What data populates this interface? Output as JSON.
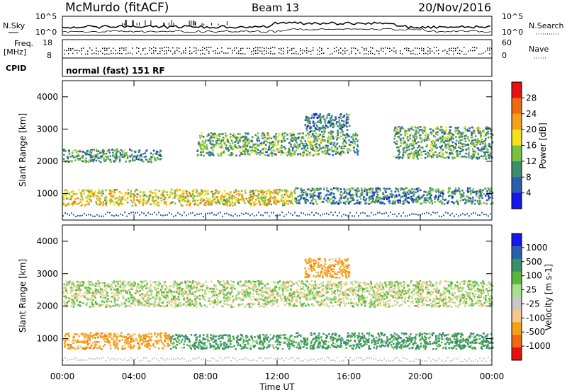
{
  "header": {
    "station": "McMurdo (fitACF)",
    "beam": "Beam 13",
    "date": "20/Nov/2016"
  },
  "noise_panel": {
    "left_label": "N.Sky",
    "right_label": "N.Search",
    "left_ticks": [
      "10^5",
      "10^0"
    ],
    "right_ticks": [
      "10^5",
      "10^0"
    ]
  },
  "freq_panel": {
    "left_label_1": "Freq.",
    "left_label_2": "[MHz]",
    "left_ticks": [
      "18",
      "8"
    ],
    "right_label": "Nave",
    "right_ticks": [
      "60",
      "0"
    ]
  },
  "cpid_panel": {
    "label": "CPID",
    "text": "normal (fast) 151 RF"
  },
  "x_axis": {
    "label": "Time UT",
    "ticks": [
      "00:00",
      "04:00",
      "08:00",
      "12:00",
      "16:00",
      "20:00",
      "00:00"
    ]
  },
  "colors": {
    "power": [
      "#1418e8",
      "#2a5fb0",
      "#3a8e6a",
      "#7ac23e",
      "#f2e21a",
      "#f5a019",
      "#f26a10",
      "#e81010"
    ],
    "velocity": [
      "#e81010",
      "#f26a10",
      "#f5a019",
      "#f5c88a",
      "#c8c8c8",
      "#a6e08a",
      "#59b83c",
      "#3a8e6a",
      "#2a5fb0",
      "#1418e8"
    ]
  },
  "chart_data": [
    {
      "type": "heatmap",
      "ylabel": "Slant Range [km]",
      "xlabel": "",
      "ylim": [
        180,
        4500
      ],
      "y_ticks": [
        "4000",
        "3000",
        "2000",
        "1000"
      ],
      "colorbar": {
        "label": "Power [dB]",
        "ticks": [
          "28",
          "24",
          "20",
          "16",
          "12",
          "8",
          "4"
        ],
        "range": [
          0,
          32
        ]
      },
      "bands": [
        {
          "from_h": 0.0,
          "to_h": 13.0,
          "range_km": [
            650,
            1150
          ],
          "value_db": 18
        },
        {
          "from_h": 13.0,
          "to_h": 24.0,
          "range_km": [
            700,
            1200
          ],
          "value_db": 9
        },
        {
          "from_h": 0.0,
          "to_h": 5.5,
          "range_km": [
            2000,
            2400
          ],
          "value_db": 10
        },
        {
          "from_h": 7.5,
          "to_h": 16.5,
          "range_km": [
            2200,
            2900
          ],
          "value_db": 12
        },
        {
          "from_h": 18.5,
          "to_h": 24.0,
          "range_km": [
            2100,
            3100
          ],
          "value_db": 11
        },
        {
          "from_h": 13.5,
          "to_h": 16.0,
          "range_km": [
            2900,
            3500
          ],
          "value_db": 8
        }
      ]
    },
    {
      "type": "heatmap",
      "ylabel": "Slant Range [km]",
      "xlabel": "Time UT",
      "ylim": [
        180,
        4500
      ],
      "y_ticks": [
        "4000",
        "3000",
        "2000",
        "1000"
      ],
      "colorbar": {
        "label": "Velocity [m s-1]",
        "ticks": [
          "1000",
          "500",
          "100",
          "25",
          "-25",
          "-100",
          "-500",
          "-1000"
        ],
        "range": [
          -1200,
          1200
        ]
      },
      "bands": [
        {
          "from_h": 0.0,
          "to_h": 6.0,
          "range_km": [
            700,
            1200
          ],
          "value": -300
        },
        {
          "from_h": 6.0,
          "to_h": 13.0,
          "range_km": [
            700,
            1150
          ],
          "value": 150
        },
        {
          "from_h": 13.0,
          "to_h": 24.0,
          "range_km": [
            700,
            1200
          ],
          "value": 200
        },
        {
          "from_h": 0.0,
          "to_h": 24.0,
          "range_km": [
            2000,
            2800
          ],
          "value": 0
        },
        {
          "from_h": 13.5,
          "to_h": 16.0,
          "range_km": [
            2900,
            3500
          ],
          "value": -300
        }
      ]
    }
  ]
}
